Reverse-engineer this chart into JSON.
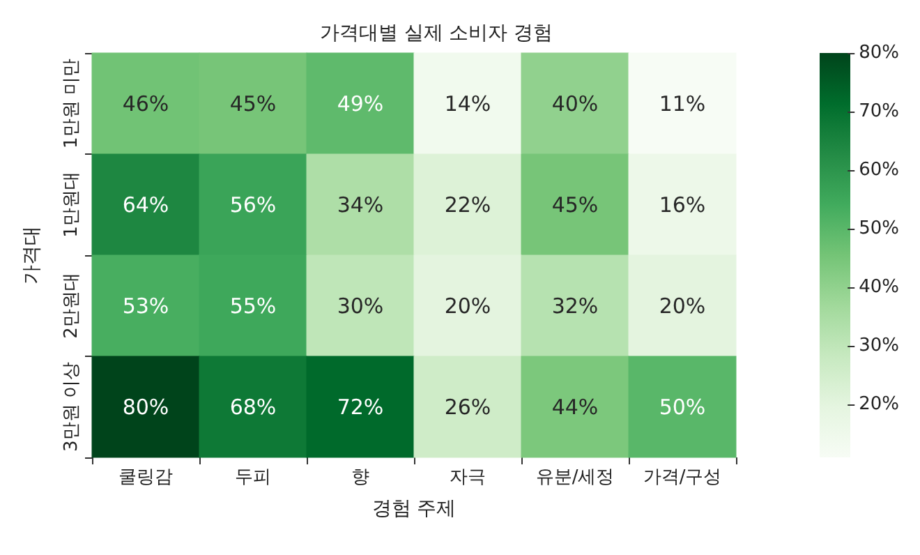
{
  "chart_data": {
    "type": "heatmap",
    "title": "가격대별 실제 소비자 경험",
    "xlabel": "경험 주제",
    "ylabel": "가격대",
    "categories": [
      "쿨링감",
      "두피",
      "향",
      "자극",
      "유분/세정",
      "가격/구성"
    ],
    "y_categories": [
      "1만원 미만",
      "1만원대",
      "2만원대",
      "3만원 이상"
    ],
    "cells": [
      [
        46,
        45,
        49,
        14,
        40,
        11
      ],
      [
        64,
        56,
        34,
        22,
        45,
        16
      ],
      [
        53,
        55,
        30,
        20,
        32,
        20
      ],
      [
        80,
        68,
        72,
        26,
        44,
        50
      ]
    ],
    "cell_labels": [
      [
        "46%",
        "45%",
        "49%",
        "14%",
        "40%",
        "11%"
      ],
      [
        "64%",
        "56%",
        "34%",
        "22%",
        "45%",
        "16%"
      ],
      [
        "53%",
        "55%",
        "30%",
        "20%",
        "32%",
        "20%"
      ],
      [
        "80%",
        "68%",
        "72%",
        "26%",
        "44%",
        "50%"
      ]
    ],
    "clim": [
      11,
      80
    ],
    "cticks": [
      {
        "value": 20,
        "label": "20%"
      },
      {
        "value": 30,
        "label": "30%"
      },
      {
        "value": 40,
        "label": "40%"
      },
      {
        "value": 50,
        "label": "50%"
      },
      {
        "value": 60,
        "label": "60%"
      },
      {
        "value": 70,
        "label": "70%"
      },
      {
        "value": 80,
        "label": "80%"
      }
    ]
  }
}
